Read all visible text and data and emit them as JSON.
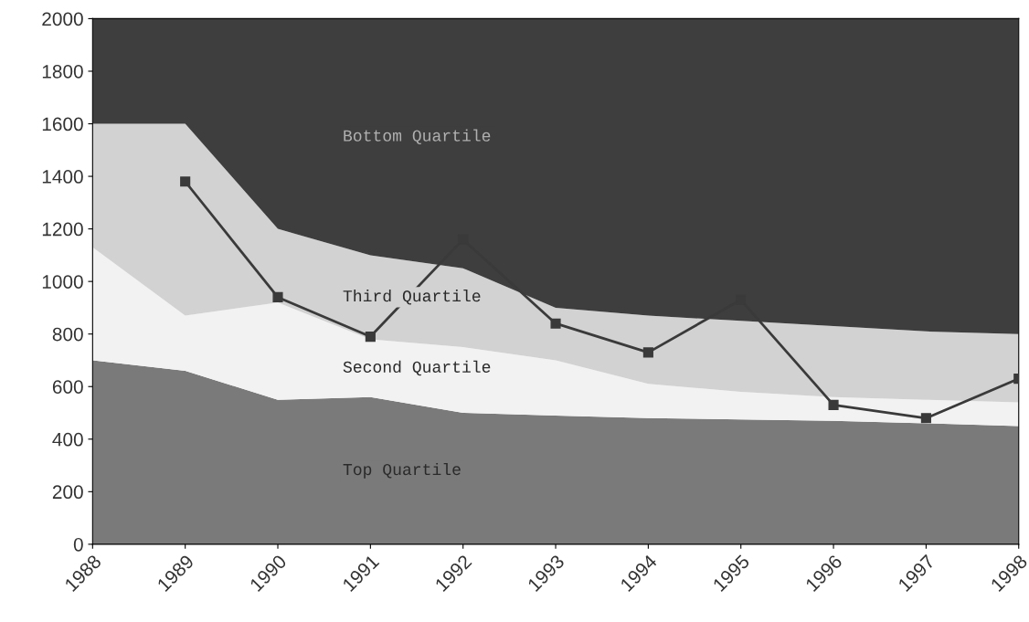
{
  "chart_data": {
    "type": "area",
    "stacked": true,
    "x": [
      1988,
      1989,
      1990,
      1991,
      1992,
      1993,
      1994,
      1995,
      1996,
      1997,
      1998
    ],
    "series": [
      {
        "name": "Top Quartile",
        "color": "#7a7a7a",
        "values": [
          700,
          660,
          550,
          560,
          500,
          490,
          480,
          475,
          470,
          460,
          450
        ]
      },
      {
        "name": "Second Quartile",
        "color": "#f2f2f2",
        "values": [
          430,
          210,
          370,
          220,
          250,
          210,
          130,
          105,
          90,
          90,
          90
        ]
      },
      {
        "name": "Third Quartile",
        "color": "#d2d2d2",
        "values": [
          470,
          730,
          280,
          320,
          300,
          200,
          260,
          270,
          270,
          260,
          260
        ]
      },
      {
        "name": "Bottom Quartile",
        "color": "#3e3e3e",
        "values": [
          400,
          400,
          800,
          900,
          950,
          1100,
          1130,
          1150,
          1170,
          1190,
          1200
        ]
      },
      {
        "type": "line",
        "color": "#3a3a3a",
        "marker": "square",
        "x": [
          1989,
          1990,
          1991,
          1992,
          1993,
          1994,
          1995,
          1996,
          1997,
          1998
        ],
        "values": [
          1380,
          940,
          790,
          1160,
          840,
          730,
          930,
          530,
          480,
          630
        ]
      }
    ],
    "xlim": [
      1988,
      1998
    ],
    "xticks": [
      1988,
      1989,
      1990,
      1991,
      1992,
      1993,
      1994,
      1995,
      1996,
      1997,
      1998
    ],
    "ylim": [
      0,
      2000
    ],
    "yticks": [
      0,
      200,
      400,
      600,
      800,
      1000,
      1200,
      1400,
      1600,
      1800,
      2000
    ],
    "grid": false
  }
}
